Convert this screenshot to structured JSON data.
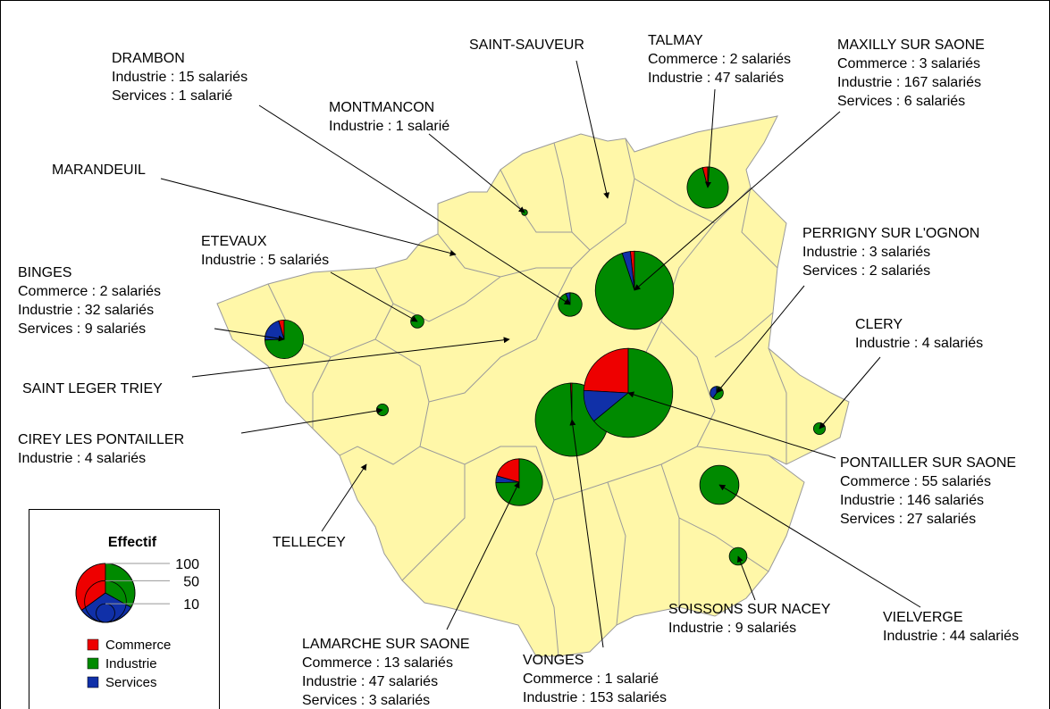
{
  "legend": {
    "title": "Effectif",
    "scale": [
      100,
      50,
      10
    ],
    "categories": [
      {
        "name": "Commerce",
        "color": "#ee0000"
      },
      {
        "name": "Industrie",
        "color": "#008a00"
      },
      {
        "name": "Services",
        "color": "#1030a8"
      }
    ]
  },
  "communes": [
    {
      "name": "DRAMBON",
      "entries": [
        {
          "sector": "Industrie",
          "value": 15,
          "label": "Industrie : 15 salariés"
        },
        {
          "sector": "Services",
          "value": 1,
          "label": "Services : 1 salarié"
        }
      ]
    },
    {
      "name": "SAINT-SAUVEUR",
      "entries": []
    },
    {
      "name": "TALMAY",
      "entries": [
        {
          "sector": "Commerce",
          "value": 2,
          "label": "Commerce : 2 salariés"
        },
        {
          "sector": "Industrie",
          "value": 47,
          "label": "Industrie : 47 salariés"
        }
      ]
    },
    {
      "name": "MAXILLY SUR SAONE",
      "entries": [
        {
          "sector": "Commerce",
          "value": 3,
          "label": "Commerce : 3 salariés"
        },
        {
          "sector": "Industrie",
          "value": 167,
          "label": "Industrie : 167 salariés"
        },
        {
          "sector": "Services",
          "value": 6,
          "label": "Services : 6 salariés"
        }
      ]
    },
    {
      "name": "MONTMANCON",
      "entries": [
        {
          "sector": "Industrie",
          "value": 1,
          "label": "Industrie : 1 salarié"
        }
      ]
    },
    {
      "name": "MARANDEUIL",
      "entries": []
    },
    {
      "name": "ETEVAUX",
      "entries": [
        {
          "sector": "Industrie",
          "value": 5,
          "label": "Industrie : 5 salariés"
        }
      ]
    },
    {
      "name": "BINGES",
      "entries": [
        {
          "sector": "Commerce",
          "value": 2,
          "label": "Commerce : 2 salariés"
        },
        {
          "sector": "Industrie",
          "value": 32,
          "label": "Industrie : 32 salariés"
        },
        {
          "sector": "Services",
          "value": 9,
          "label": "Services : 9 salariés"
        }
      ]
    },
    {
      "name": "SAINT LEGER TRIEY",
      "entries": []
    },
    {
      "name": "CIREY LES PONTAILLER",
      "entries": [
        {
          "sector": "Industrie",
          "value": 4,
          "label": "Industrie : 4 salariés"
        }
      ]
    },
    {
      "name": "TELLECEY",
      "entries": []
    },
    {
      "name": "LAMARCHE SUR SAONE",
      "entries": [
        {
          "sector": "Commerce",
          "value": 13,
          "label": "Commerce : 13 salariés"
        },
        {
          "sector": "Industrie",
          "value": 47,
          "label": "Industrie : 47 salariés"
        },
        {
          "sector": "Services",
          "value": 3,
          "label": "Services : 3 salariés"
        }
      ]
    },
    {
      "name": "VONGES",
      "entries": [
        {
          "sector": "Commerce",
          "value": 1,
          "label": "Commerce : 1 salarié"
        },
        {
          "sector": "Industrie",
          "value": 153,
          "label": "Industrie : 153 salariés"
        }
      ]
    },
    {
      "name": "SOISSONS SUR NACEY",
      "entries": [
        {
          "sector": "Industrie",
          "value": 9,
          "label": "Industrie : 9 salariés"
        }
      ]
    },
    {
      "name": "VIELVERGE",
      "entries": [
        {
          "sector": "Industrie",
          "value": 44,
          "label": "Industrie : 44 salariés"
        }
      ]
    },
    {
      "name": "PONTAILLER SUR SAONE",
      "entries": [
        {
          "sector": "Commerce",
          "value": 55,
          "label": "Commerce : 55 salariés"
        },
        {
          "sector": "Industrie",
          "value": 146,
          "label": "Industrie : 146 salariés"
        },
        {
          "sector": "Services",
          "value": 27,
          "label": "Services : 27 salariés"
        }
      ]
    },
    {
      "name": "CLERY",
      "entries": [
        {
          "sector": "Industrie",
          "value": 4,
          "label": "Industrie : 4 salariés"
        }
      ]
    },
    {
      "name": "PERRIGNY SUR L'OGNON",
      "entries": [
        {
          "sector": "Industrie",
          "value": 3,
          "label": "Industrie : 3 salariés"
        },
        {
          "sector": "Services",
          "value": 2,
          "label": "Services : 2 salariés"
        }
      ]
    }
  ]
}
